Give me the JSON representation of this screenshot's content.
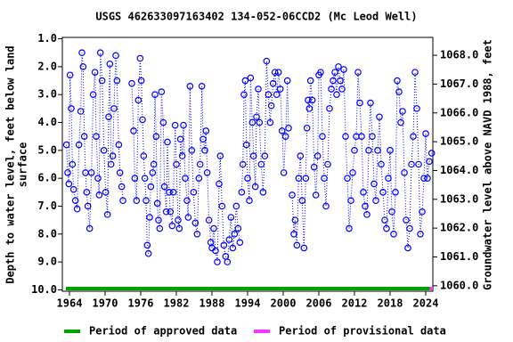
{
  "chart_data": {
    "type": "scatter",
    "title": "USGS 462633097163402 134-052-06CCD2 (Mc Leod Well)",
    "ylabel": [
      "Depth to water level, feet below land",
      "surface"
    ],
    "y2label": "Groundwater level above NAVD 1988, feet",
    "xlim": [
      1962.8,
      2025.2
    ],
    "xticks": [
      1964,
      1970,
      1976,
      1982,
      1988,
      1994,
      2000,
      2006,
      2012,
      2018,
      2024
    ],
    "ylim": [
      10.05,
      0.95
    ],
    "yticks": [
      {
        "value": 1,
        "label": "1.0"
      },
      {
        "value": 2,
        "label": "2.0"
      },
      {
        "value": 3,
        "label": "3.0"
      },
      {
        "value": 4,
        "label": "4.0"
      },
      {
        "value": 5,
        "label": "5.0"
      },
      {
        "value": 6,
        "label": "6.0"
      },
      {
        "value": 7,
        "label": "7.0"
      },
      {
        "value": 8,
        "label": "8.0"
      },
      {
        "value": 9,
        "label": "9.0"
      },
      {
        "value": 10,
        "label": "10.0"
      }
    ],
    "y2lim": [
      1059.81,
      1068.62
    ],
    "y2ticks": [
      {
        "value": 1060,
        "label": "1060.0"
      },
      {
        "value": 1061,
        "label": "1061.0"
      },
      {
        "value": 1062,
        "label": "1062.0"
      },
      {
        "value": 1063,
        "label": "1063.0"
      },
      {
        "value": 1064,
        "label": "1064.0"
      },
      {
        "value": 1065,
        "label": "1065.0"
      },
      {
        "value": 1066,
        "label": "1066.0"
      },
      {
        "value": 1067,
        "label": "1067.0"
      },
      {
        "value": 1068,
        "label": "1068.0"
      }
    ],
    "series": [
      {
        "color": "#0000ff",
        "x": [
          1963.5,
          1963.7,
          1963.9,
          1964.1,
          1964.3,
          1964.5,
          1964.7,
          1965.0,
          1965.3,
          1965.6,
          1965.9,
          1966.1,
          1966.3,
          1966.5,
          1966.7,
          1966.9,
          1967.1,
          1967.4,
          1967.7,
          1968.0,
          1968.3,
          1968.5,
          1968.8,
          1969.0,
          1969.2,
          1969.5,
          1969.8,
          1970.1,
          1970.4,
          1970.6,
          1970.8,
          1971.0,
          1971.3,
          1971.5,
          1971.8,
          1972.0,
          1972.3,
          1972.5,
          1972.8,
          1973.0,
          null,
          1974.5,
          1974.8,
          1975.0,
          1975.3,
          1975.6,
          1975.9,
          1976.1,
          1976.3,
          1976.5,
          1976.7,
          1976.9,
          1977.1,
          1977.3,
          1977.5,
          1977.7,
          1978.0,
          1978.2,
          1978.4,
          1978.6,
          1978.8,
          1979.0,
          1979.2,
          1979.5,
          1979.8,
          1980.0,
          1980.3,
          1980.5,
          1980.8,
          1981.0,
          1981.3,
          1981.5,
          1981.8,
          1982.0,
          1982.3,
          1982.5,
          1982.7,
          1983.0,
          1983.2,
          1983.5,
          1983.8,
          1984.0,
          1984.3,
          1984.6,
          1984.9,
          1985.2,
          1985.5,
          1985.8,
          1986.0,
          1986.3,
          1986.5,
          1986.8,
          1987.0,
          1987.2,
          1987.5,
          1987.8,
          1988.0,
          1988.3,
          1988.6,
          1988.9,
          1989.2,
          1989.4,
          1989.7,
          1990.0,
          1990.3,
          1990.6,
          1990.9,
          1991.2,
          1991.5,
          1991.8,
          1992.1,
          1992.4,
          1992.7,
          null,
          1993.0,
          1993.2,
          1993.4,
          1993.6,
          1993.8,
          1994.0,
          1994.3,
          1994.5,
          1994.8,
          1995.0,
          1995.3,
          1995.5,
          1995.8,
          1996.0,
          1996.3,
          1996.6,
          1996.9,
          1997.2,
          1997.5,
          1997.8,
          1998.0,
          1998.3,
          1998.6,
          1998.9,
          1999.2,
          1999.5,
          1999.8,
          2000.1,
          2000.4,
          2000.7,
          2000.9,
          null,
          2001.5,
          2001.8,
          2002.0,
          2002.3,
          2002.6,
          2002.9,
          2003.2,
          2003.5,
          2003.8,
          2004.0,
          2004.2,
          2004.4,
          2004.6,
          2004.9,
          2005.2,
          2005.5,
          2005.8,
          2006.0,
          2006.3,
          2006.6,
          2006.9,
          2007.2,
          2007.5,
          2007.8,
          2008.1,
          2008.4,
          2008.7,
          2009.0,
          2009.3,
          2009.6,
          2009.9,
          2010.2,
          2010.5,
          2010.8,
          2011.1,
          2011.4,
          2011.7,
          2012.0,
          2012.3,
          2012.6,
          2012.9,
          2013.2,
          2013.5,
          2013.8,
          2014.1,
          2014.4,
          2014.7,
          2015.0,
          2015.3,
          2015.6,
          2015.9,
          2016.2,
          2016.5,
          2016.8,
          2017.1,
          2017.4,
          2017.7,
          2018.0,
          2018.3,
          2018.6,
          2018.9,
          2019.2,
          2019.5,
          2019.8,
          2020.1,
          2020.4,
          2020.7,
          2021.0,
          2021.3,
          2021.6,
          2021.9,
          2022.2,
          2022.5,
          2022.8,
          2023.1,
          2023.4,
          2023.7,
          2024.0,
          2024.3,
          2024.6,
          2025.0
        ],
        "values": [
          4.8,
          5.8,
          6.2,
          2.3,
          3.5,
          5.5,
          6.4,
          6.8,
          7.1,
          4.8,
          3.6,
          1.5,
          2.0,
          4.5,
          5.8,
          6.5,
          7.0,
          7.8,
          5.8,
          3.0,
          2.2,
          4.5,
          6.0,
          6.6,
          1.5,
          2.5,
          5.0,
          6.5,
          7.3,
          3.8,
          1.9,
          5.5,
          5.2,
          3.5,
          1.6,
          2.5,
          4.8,
          5.8,
          6.3,
          6.8,
          null,
          2.6,
          4.3,
          6.0,
          6.8,
          3.2,
          1.7,
          2.5,
          3.9,
          5.2,
          6.0,
          6.8,
          8.4,
          8.7,
          7.4,
          6.3,
          5.8,
          5.5,
          3.0,
          4.5,
          6.9,
          7.5,
          7.8,
          2.9,
          4.0,
          6.3,
          7.2,
          4.7,
          6.5,
          7.2,
          7.7,
          6.5,
          4.1,
          5.5,
          7.5,
          7.8,
          4.6,
          5.2,
          4.1,
          6.0,
          6.8,
          7.4,
          2.7,
          5.0,
          6.5,
          7.6,
          8.0,
          6.0,
          5.5,
          2.7,
          4.6,
          5.0,
          4.3,
          5.8,
          7.5,
          8.3,
          8.5,
          7.8,
          8.6,
          9.0,
          6.2,
          5.2,
          7.0,
          8.4,
          8.8,
          9.0,
          8.2,
          7.4,
          8.5,
          8.0,
          7.0,
          7.8,
          8.3,
          null,
          6.5,
          5.5,
          3.0,
          2.5,
          4.8,
          6.0,
          6.8,
          2.4,
          4.0,
          5.2,
          6.3,
          3.8,
          2.8,
          4.0,
          5.5,
          6.5,
          5.2,
          1.8,
          3.0,
          4.0,
          3.4,
          2.6,
          2.2,
          3.0,
          2.2,
          2.8,
          4.3,
          5.8,
          4.5,
          2.5,
          4.2,
          null,
          6.6,
          8.0,
          7.5,
          8.4,
          6.0,
          5.2,
          6.8,
          8.5,
          6.0,
          4.2,
          3.2,
          3.5,
          2.5,
          3.2,
          5.6,
          6.6,
          5.2,
          2.3,
          2.2,
          4.5,
          6.0,
          7.0,
          5.5,
          3.5,
          2.8,
          2.5,
          2.2,
          3.0,
          2.0,
          2.5,
          2.8,
          2.1,
          4.5,
          6.0,
          7.8,
          6.8,
          5.8,
          5.0,
          4.5,
          2.2,
          3.3,
          4.5,
          6.5,
          7.0,
          7.3,
          5.0,
          3.3,
          4.5,
          6.2,
          6.8,
          5.0,
          3.8,
          5.5,
          6.5,
          7.5,
          7.8,
          6.0,
          5.0,
          7.2,
          8.0,
          6.5,
          2.5,
          2.9,
          4.0,
          3.6,
          5.8,
          7.5,
          8.5,
          7.8,
          5.5,
          4.5,
          2.2,
          3.5,
          5.5,
          8.0,
          7.2,
          6.0,
          4.4,
          6.0,
          5.4,
          5.1
        ]
      }
    ],
    "periods": [
      {
        "name": "Period of approved data",
        "color": "#00a000",
        "x": [
          1963.4,
          2024.7
        ]
      },
      {
        "name": "Period of provisional data",
        "color": "#ff33ff",
        "x": [
          2024.7,
          2025.2
        ]
      }
    ]
  }
}
